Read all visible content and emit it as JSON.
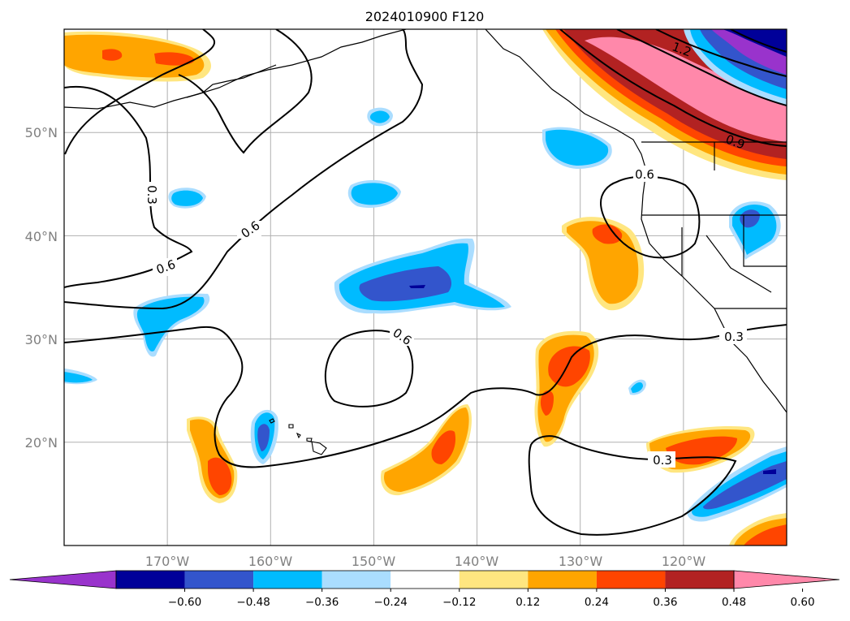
{
  "title": "2024010900 F120",
  "map": {
    "lon_range": [
      -180,
      -110
    ],
    "lat_range": [
      10,
      60
    ],
    "lon_ticks": [
      {
        "lon": -170,
        "label": "170°W"
      },
      {
        "lon": -160,
        "label": "160°W"
      },
      {
        "lon": -150,
        "label": "150°W"
      },
      {
        "lon": -140,
        "label": "140°W"
      },
      {
        "lon": -130,
        "label": "130°W"
      },
      {
        "lon": -120,
        "label": "120°W"
      }
    ],
    "lat_ticks": [
      {
        "lat": 50,
        "label": "50°N"
      },
      {
        "lat": 40,
        "label": "40°N"
      },
      {
        "lat": 30,
        "label": "30°N"
      },
      {
        "lat": 20,
        "label": "20°N"
      }
    ],
    "gridlines": true,
    "contour_labels": [
      "1.2",
      "0.9",
      "0.6",
      "0.3",
      "0.6",
      "0.6",
      "0.6",
      "0.3",
      "0.3"
    ]
  },
  "colorbar": {
    "colors": [
      "#9933cc",
      "#000099",
      "#3355cc",
      "#00bbff",
      "#aaddff",
      "#ffffff",
      "#ffe680",
      "#ffa500",
      "#ff4500",
      "#b22222",
      "#ff88aa"
    ],
    "labels": [
      "−0.60",
      "−0.48",
      "−0.36",
      "−0.24",
      "−0.12",
      "0.12",
      "0.24",
      "0.36",
      "0.48",
      "0.60"
    ]
  }
}
